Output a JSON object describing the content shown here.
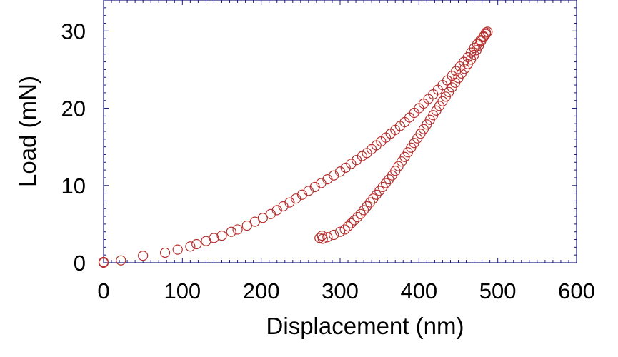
{
  "chart_data": {
    "type": "scatter",
    "xlabel": "Displacement (nm)",
    "ylabel": "Load (mN)",
    "xlim": [
      0,
      600
    ],
    "ylim": [
      0,
      34
    ],
    "xticks": [
      "0",
      "100",
      "200",
      "300",
      "400",
      "500",
      "600"
    ],
    "yticks": [
      "0",
      "10",
      "20",
      "30"
    ],
    "marker": "open-circle",
    "color": "#b5302e",
    "series": [
      {
        "points": [
          [
            0,
            0.0
          ],
          [
            0,
            0.1
          ],
          [
            22,
            0.3
          ],
          [
            50,
            0.9
          ],
          [
            78,
            1.3
          ],
          [
            94,
            1.7
          ],
          [
            110,
            2.1
          ],
          [
            118,
            2.4
          ],
          [
            130,
            2.8
          ],
          [
            140,
            3.2
          ],
          [
            150,
            3.5
          ],
          [
            162,
            4.0
          ],
          [
            170,
            4.3
          ],
          [
            182,
            4.8
          ],
          [
            192,
            5.3
          ],
          [
            202,
            5.8
          ],
          [
            212,
            6.3
          ],
          [
            220,
            6.8
          ],
          [
            228,
            7.3
          ],
          [
            236,
            7.8
          ],
          [
            244,
            8.3
          ],
          [
            252,
            8.8
          ],
          [
            260,
            9.3
          ],
          [
            268,
            9.8
          ],
          [
            276,
            10.3
          ],
          [
            284,
            10.8
          ],
          [
            292,
            11.3
          ],
          [
            300,
            11.8
          ],
          [
            307,
            12.3
          ],
          [
            314,
            12.8
          ],
          [
            321,
            13.3
          ],
          [
            328,
            13.8
          ],
          [
            334,
            14.2
          ],
          [
            340,
            14.7
          ],
          [
            346,
            15.2
          ],
          [
            352,
            15.7
          ],
          [
            358,
            16.2
          ],
          [
            364,
            16.7
          ],
          [
            370,
            17.2
          ],
          [
            376,
            17.7
          ],
          [
            382,
            18.2
          ],
          [
            388,
            18.8
          ],
          [
            394,
            19.4
          ],
          [
            400,
            20.0
          ],
          [
            406,
            20.6
          ],
          [
            412,
            21.2
          ],
          [
            418,
            21.8
          ],
          [
            424,
            22.4
          ],
          [
            430,
            23.0
          ],
          [
            436,
            23.6
          ],
          [
            442,
            24.2
          ],
          [
            447,
            24.8
          ],
          [
            452,
            25.4
          ],
          [
            457,
            26.0
          ],
          [
            462,
            26.6
          ],
          [
            466,
            27.2
          ],
          [
            470,
            27.8
          ],
          [
            474,
            28.3
          ],
          [
            478,
            28.8
          ],
          [
            482,
            29.2
          ],
          [
            485,
            29.6
          ],
          [
            487,
            29.9
          ],
          [
            485,
            29.8
          ],
          [
            482,
            29.3
          ],
          [
            479,
            28.7
          ],
          [
            476,
            28.1
          ],
          [
            473,
            27.5
          ],
          [
            470,
            26.9
          ],
          [
            466,
            26.3
          ],
          [
            462,
            25.7
          ],
          [
            458,
            25.1
          ],
          [
            454,
            24.5
          ],
          [
            450,
            23.9
          ],
          [
            446,
            23.3
          ],
          [
            442,
            22.7
          ],
          [
            438,
            22.1
          ],
          [
            434,
            21.5
          ],
          [
            430,
            20.9
          ],
          [
            426,
            20.3
          ],
          [
            422,
            19.7
          ],
          [
            418,
            19.1
          ],
          [
            414,
            18.5
          ],
          [
            410,
            17.9
          ],
          [
            406,
            17.3
          ],
          [
            402,
            16.7
          ],
          [
            398,
            16.1
          ],
          [
            394,
            15.5
          ],
          [
            390,
            14.9
          ],
          [
            386,
            14.3
          ],
          [
            382,
            13.7
          ],
          [
            378,
            13.1
          ],
          [
            374,
            12.5
          ],
          [
            370,
            11.9
          ],
          [
            366,
            11.3
          ],
          [
            362,
            10.8
          ],
          [
            358,
            10.3
          ],
          [
            354,
            9.8
          ],
          [
            350,
            9.3
          ],
          [
            346,
            8.8
          ],
          [
            342,
            8.3
          ],
          [
            338,
            7.8
          ],
          [
            334,
            7.3
          ],
          [
            330,
            6.8
          ],
          [
            326,
            6.3
          ],
          [
            322,
            5.9
          ],
          [
            318,
            5.5
          ],
          [
            314,
            5.1
          ],
          [
            310,
            4.7
          ],
          [
            306,
            4.3
          ],
          [
            300,
            4.0
          ],
          [
            292,
            3.6
          ],
          [
            284,
            3.3
          ],
          [
            278,
            3.1
          ],
          [
            274,
            3.2
          ],
          [
            277,
            3.5
          ]
        ]
      }
    ]
  }
}
